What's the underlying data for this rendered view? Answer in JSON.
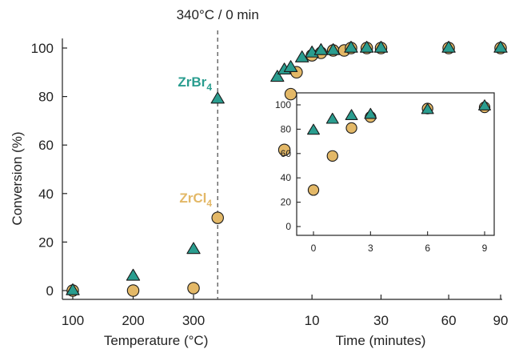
{
  "chart_data": [
    {
      "type": "scatter",
      "panel": "main",
      "ylabel": "Conversion (%)",
      "xlabel_left": "Temperature (°C)",
      "xlabel_right": "Time (minutes)",
      "marker_label": "340°C / 0 min",
      "ylim": [
        0,
        100
      ],
      "yticks": [
        0,
        20,
        40,
        60,
        80,
        100
      ],
      "x_segments": [
        {
          "unit": "°C",
          "range": [
            100,
            340
          ],
          "ticks": [
            100,
            200,
            300
          ]
        },
        {
          "unit": "min",
          "range": [
            0,
            90
          ],
          "ticks": [
            10,
            30,
            60,
            90
          ]
        }
      ],
      "colors": {
        "ZrCl4": "#e3b867",
        "ZrBr4": "#2a9d8f"
      },
      "series": [
        {
          "name": "ZrCl4",
          "marker": "circle",
          "temperature_points": [
            {
              "x": 100,
              "y": 0
            },
            {
              "x": 200,
              "y": 0
            },
            {
              "x": 300,
              "y": 1
            },
            {
              "x": 340,
              "y": 30
            }
          ],
          "time_points": [
            {
              "x": 5,
              "y": 58
            },
            {
              "x": 6,
              "y": 81
            },
            {
              "x": 7,
              "y": 90
            },
            {
              "x": 10,
              "y": 97
            },
            {
              "x": 12,
              "y": 98
            },
            {
              "x": 15,
              "y": 99
            },
            {
              "x": 18,
              "y": 99
            },
            {
              "x": 20,
              "y": 100
            },
            {
              "x": 25,
              "y": 100
            },
            {
              "x": 30,
              "y": 100
            },
            {
              "x": 60,
              "y": 100
            },
            {
              "x": 90,
              "y": 100
            }
          ]
        },
        {
          "name": "ZrBr4",
          "marker": "triangle",
          "temperature_points": [
            {
              "x": 100,
              "y": 0
            },
            {
              "x": 200,
              "y": 6
            },
            {
              "x": 300,
              "y": 17
            },
            {
              "x": 340,
              "y": 79
            }
          ],
          "time_points": [
            {
              "x": 4,
              "y": 88
            },
            {
              "x": 5,
              "y": 91
            },
            {
              "x": 6,
              "y": 92
            },
            {
              "x": 8,
              "y": 96
            },
            {
              "x": 10,
              "y": 98
            },
            {
              "x": 12,
              "y": 99
            },
            {
              "x": 15,
              "y": 99
            },
            {
              "x": 20,
              "y": 100
            },
            {
              "x": 25,
              "y": 100
            },
            {
              "x": 30,
              "y": 100
            },
            {
              "x": 60,
              "y": 100
            },
            {
              "x": 90,
              "y": 100
            }
          ]
        }
      ]
    },
    {
      "type": "scatter",
      "panel": "inset",
      "xlim": [
        0,
        9
      ],
      "ylim": [
        0,
        100
      ],
      "xticks": [
        0,
        3,
        6,
        9
      ],
      "yticks": [
        0,
        20,
        40,
        60,
        80,
        100
      ],
      "series": [
        {
          "name": "ZrCl4",
          "marker": "circle",
          "points": [
            {
              "x": 0,
              "y": 30
            },
            {
              "x": 1,
              "y": 58
            },
            {
              "x": 2,
              "y": 81
            },
            {
              "x": 3,
              "y": 90
            },
            {
              "x": 6,
              "y": 97
            },
            {
              "x": 9,
              "y": 98
            }
          ]
        },
        {
          "name": "ZrBr4",
          "marker": "triangle",
          "points": [
            {
              "x": 0,
              "y": 79
            },
            {
              "x": 1,
              "y": 88
            },
            {
              "x": 2,
              "y": 91
            },
            {
              "x": 3,
              "y": 92
            },
            {
              "x": 6,
              "y": 96
            },
            {
              "x": 9,
              "y": 99
            }
          ]
        }
      ]
    }
  ]
}
